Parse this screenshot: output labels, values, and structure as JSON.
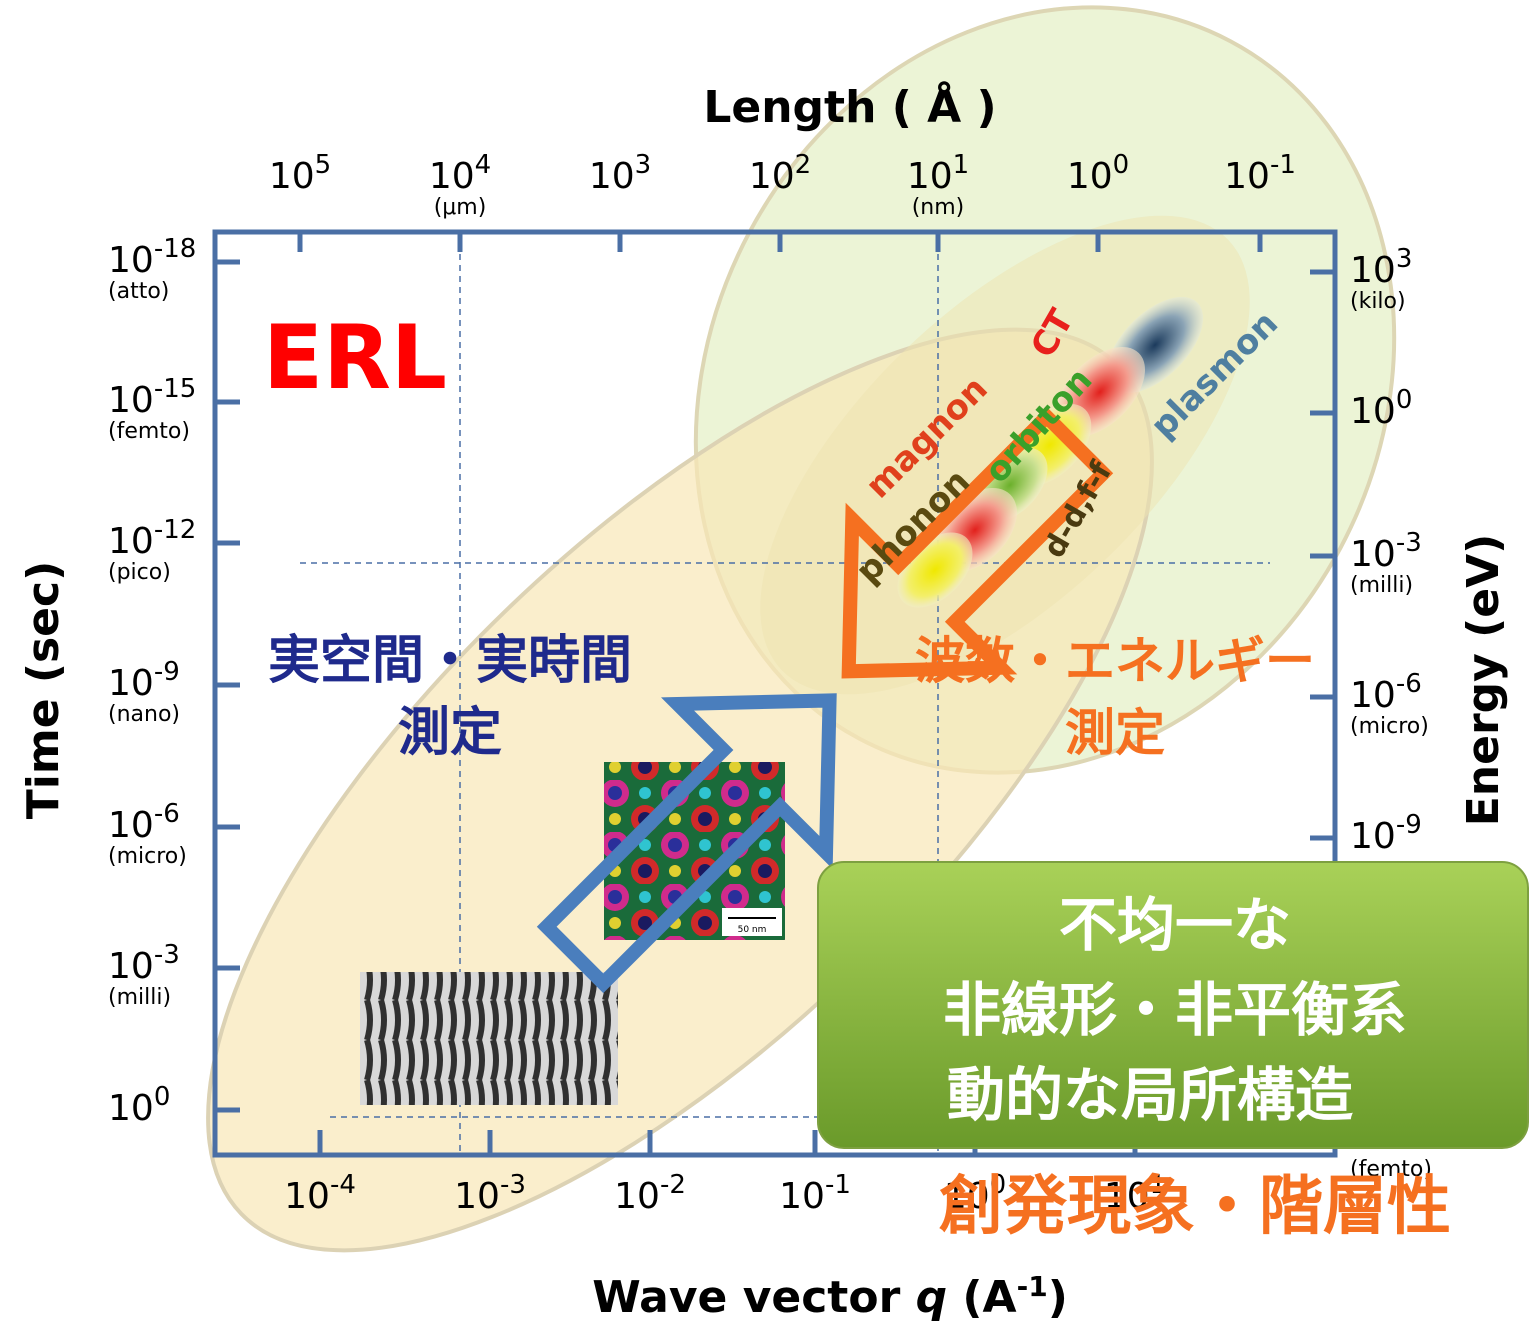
{
  "top_axis": {
    "title": "Length ( Å )",
    "ticks": [
      {
        "base": "10",
        "exp": "5"
      },
      {
        "base": "10",
        "exp": "4",
        "unit": "(μm)"
      },
      {
        "base": "10",
        "exp": "3"
      },
      {
        "base": "10",
        "exp": "2"
      },
      {
        "base": "10",
        "exp": "1",
        "unit": "(nm)"
      },
      {
        "base": "10",
        "exp": "0"
      },
      {
        "base": "10",
        "exp": "-1"
      }
    ]
  },
  "left_axis": {
    "title": "Time (sec)",
    "ticks": [
      {
        "base": "10",
        "exp": "-18",
        "unit": "(atto)"
      },
      {
        "base": "10",
        "exp": "-15",
        "unit": "(femto)"
      },
      {
        "base": "10",
        "exp": "-12",
        "unit": "(pico)"
      },
      {
        "base": "10",
        "exp": "-9",
        "unit": "(nano)"
      },
      {
        "base": "10",
        "exp": "-6",
        "unit": "(micro)"
      },
      {
        "base": "10",
        "exp": "-3",
        "unit": "(milli)"
      },
      {
        "base": "10",
        "exp": "0"
      }
    ]
  },
  "right_axis": {
    "title": "Energy (eV)",
    "ticks": [
      {
        "base": "10",
        "exp": "3",
        "unit": "(kilo)"
      },
      {
        "base": "10",
        "exp": "0"
      },
      {
        "base": "10",
        "exp": "-3",
        "unit": "(milli)"
      },
      {
        "base": "10",
        "exp": "-6",
        "unit": "(micro)"
      },
      {
        "base": "10",
        "exp": "-9"
      },
      {
        "unit": "(femto)"
      }
    ]
  },
  "bottom_axis": {
    "title": {
      "text": "Wave vector ",
      "var": "q",
      "unit": " (A",
      "exp": "-1",
      "close": ")"
    },
    "ticks": [
      {
        "base": "10",
        "exp": "-4"
      },
      {
        "base": "10",
        "exp": "-3"
      },
      {
        "base": "10",
        "exp": "-2"
      },
      {
        "base": "10",
        "exp": "-1"
      },
      {
        "base": "10",
        "exp": "0"
      },
      {
        "base": "10",
        "exp": "1"
      }
    ]
  },
  "erl": "ERL",
  "excitations": [
    "magnon",
    "phonon",
    "orbiton",
    "CT",
    "plasmon",
    "d-d,f-f"
  ],
  "real_space": [
    "実空間・実時間",
    "測定"
  ],
  "momentum": [
    "波数・エネルギー",
    "測定"
  ],
  "image_scale": "50 nm",
  "box": [
    "不均一な",
    "非線形・非平衡系",
    "動的な局所構造"
  ],
  "footer": "創発現象・階層性"
}
